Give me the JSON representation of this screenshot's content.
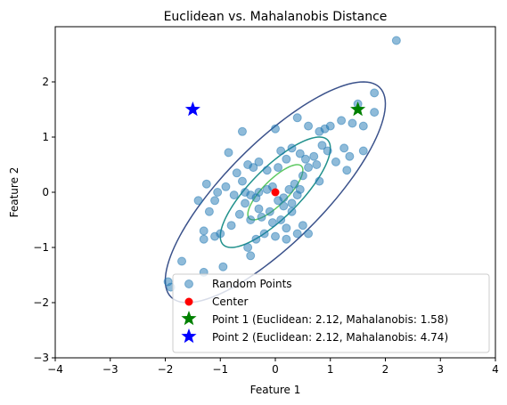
{
  "chart_data": {
    "type": "scatter",
    "title": "Euclidean vs. Mahalanobis Distance",
    "xlabel": "Feature 1",
    "ylabel": "Feature 2",
    "xlim": [
      -4,
      4
    ],
    "ylim": [
      -3,
      3
    ],
    "xticks": [
      "−4",
      "−3",
      "−2",
      "−1",
      "0",
      "1",
      "2",
      "3",
      "4"
    ],
    "yticks": [
      "−3",
      "−2",
      "−1",
      "0",
      "1",
      "2"
    ],
    "xtick_values": [
      -4,
      -3,
      -2,
      -1,
      0,
      1,
      2,
      3,
      4
    ],
    "ytick_values": [
      -3,
      -2,
      -1,
      0,
      1,
      2
    ],
    "grid": false,
    "legend_position": "lower-right",
    "colors": {
      "random": "#1f77b4",
      "center": "#ff0000",
      "point1": "#008000",
      "point2": "#0000ff",
      "contour_outer": "#3b528b",
      "contour_mid": "#21918c",
      "contour_inner": "#5ec962"
    },
    "legend": [
      {
        "key": "random",
        "label": "Random Points"
      },
      {
        "key": "center",
        "label": "Center"
      },
      {
        "key": "point1",
        "label": "Point 1 (Euclidean: 2.12, Mahalanobis: 1.58)"
      },
      {
        "key": "point2",
        "label": "Point 2 (Euclidean: 2.12, Mahalanobis: 4.74)"
      }
    ],
    "center": [
      0,
      0
    ],
    "point1": [
      1.5,
      1.5
    ],
    "point2": [
      -1.5,
      1.5
    ],
    "contours": {
      "cov": [
        [
          1.0,
          0.8
        ],
        [
          0.8,
          1.0
        ]
      ],
      "levels": [
        0.5,
        1.0,
        2.0
      ]
    },
    "random_points": [
      [
        2.2,
        2.75
      ],
      [
        1.8,
        1.8
      ],
      [
        1.5,
        1.6
      ],
      [
        1.8,
        1.45
      ],
      [
        1.6,
        1.2
      ],
      [
        1.4,
        1.25
      ],
      [
        1.2,
        1.3
      ],
      [
        1.0,
        1.2
      ],
      [
        0.9,
        1.15
      ],
      [
        0.8,
        1.1
      ],
      [
        0.6,
        1.2
      ],
      [
        0.4,
        1.35
      ],
      [
        0.0,
        1.15
      ],
      [
        -0.6,
        1.1
      ],
      [
        -0.85,
        0.72
      ],
      [
        -0.5,
        0.5
      ],
      [
        -0.4,
        0.45
      ],
      [
        -0.3,
        0.55
      ],
      [
        -0.15,
        0.4
      ],
      [
        0.05,
        0.45
      ],
      [
        0.2,
        0.6
      ],
      [
        0.3,
        0.8
      ],
      [
        0.1,
        0.75
      ],
      [
        0.45,
        0.7
      ],
      [
        0.55,
        0.6
      ],
      [
        0.7,
        0.65
      ],
      [
        0.85,
        0.85
      ],
      [
        0.95,
        0.75
      ],
      [
        1.1,
        0.55
      ],
      [
        1.25,
        0.8
      ],
      [
        1.3,
        0.4
      ],
      [
        1.35,
        0.65
      ],
      [
        1.6,
        0.75
      ],
      [
        0.75,
        0.5
      ],
      [
        0.6,
        0.45
      ],
      [
        0.5,
        0.3
      ],
      [
        0.35,
        0.15
      ],
      [
        0.25,
        0.05
      ],
      [
        0.8,
        0.2
      ],
      [
        0.4,
        -0.05
      ],
      [
        0.3,
        -0.2
      ],
      [
        0.15,
        -0.1
      ],
      [
        0.05,
        -0.15
      ],
      [
        -0.05,
        0.1
      ],
      [
        -0.15,
        0.05
      ],
      [
        -0.3,
        0.0
      ],
      [
        -0.35,
        -0.1
      ],
      [
        -0.45,
        -0.05
      ],
      [
        -0.55,
        0.0
      ],
      [
        -0.6,
        0.2
      ],
      [
        -0.7,
        0.35
      ],
      [
        -0.9,
        0.1
      ],
      [
        -1.05,
        0.0
      ],
      [
        -1.25,
        0.15
      ],
      [
        -1.4,
        -0.15
      ],
      [
        -1.2,
        -0.35
      ],
      [
        -1.1,
        -0.15
      ],
      [
        -0.75,
        -0.05
      ],
      [
        -0.55,
        -0.2
      ],
      [
        -0.65,
        -0.4
      ],
      [
        -0.45,
        -0.5
      ],
      [
        -0.25,
        -0.45
      ],
      [
        -0.1,
        -0.35
      ],
      [
        -0.05,
        -0.55
      ],
      [
        0.1,
        -0.5
      ],
      [
        0.3,
        -0.35
      ],
      [
        0.5,
        -0.6
      ],
      [
        0.4,
        -0.75
      ],
      [
        0.2,
        -0.85
      ],
      [
        0.0,
        -0.8
      ],
      [
        -0.2,
        -0.75
      ],
      [
        -0.35,
        -0.85
      ],
      [
        -0.5,
        -1.0
      ],
      [
        -0.45,
        -1.15
      ],
      [
        -0.8,
        -0.6
      ],
      [
        -1.0,
        -0.75
      ],
      [
        -1.1,
        -0.8
      ],
      [
        -1.3,
        -0.7
      ],
      [
        -1.3,
        -0.85
      ],
      [
        -0.95,
        -1.35
      ],
      [
        -1.3,
        -1.45
      ],
      [
        -1.7,
        -1.25
      ],
      [
        -1.95,
        -1.62
      ],
      [
        -1.9,
        -1.72
      ],
      [
        0.15,
        -0.25
      ],
      [
        0.2,
        -0.65
      ],
      [
        0.6,
        -0.75
      ],
      [
        -0.3,
        -0.3
      ],
      [
        0.45,
        0.05
      ]
    ]
  }
}
